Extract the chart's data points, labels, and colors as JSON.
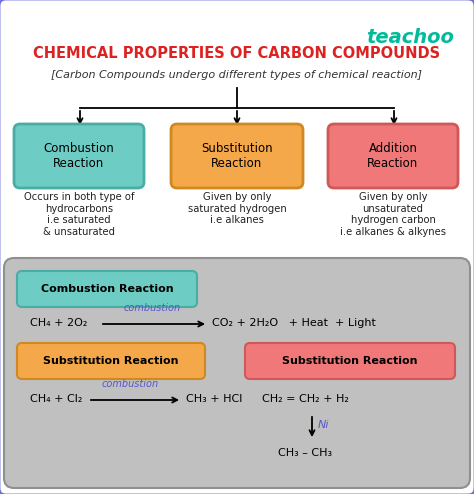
{
  "title": "CHEMICAL PROPERTIES OF CARBON COMPOUNDS",
  "subtitle": "[Carbon Compounds undergo different types of chemical reaction]",
  "teachoo_text": "teachoo",
  "bg_outer": "#ffffff",
  "border_color": "#7070e0",
  "title_color": "#dd2222",
  "subtitle_color": "#333333",
  "teachoo_color": "#00bb99",
  "box_combustion_fill": "#6dcdc5",
  "box_combustion_border": "#4aada5",
  "box_substitution_fill": "#f5a84a",
  "box_substitution_border": "#d08820",
  "box_addition_fill": "#f07878",
  "box_addition_border": "#d05858",
  "bottom_bg": "#c0c0c0",
  "bottom_border": "#909090",
  "arrow_color": "#5555cc",
  "text_color": "#222222",
  "eq1_left": "CH₄ + 2O₂",
  "eq1_label": "combustion",
  "eq1_right": "CO₂ + 2H₂O   + Heat  + Light",
  "eq2_left": "CH₄ + Cl₂",
  "eq2_label": "combustion",
  "eq2_right": "CH₃ + HCl",
  "eq3_line1": "CH₂ = CH₂ + H₂",
  "eq3_label": "Ni",
  "eq3_line2": "CH₃ – CH₃"
}
